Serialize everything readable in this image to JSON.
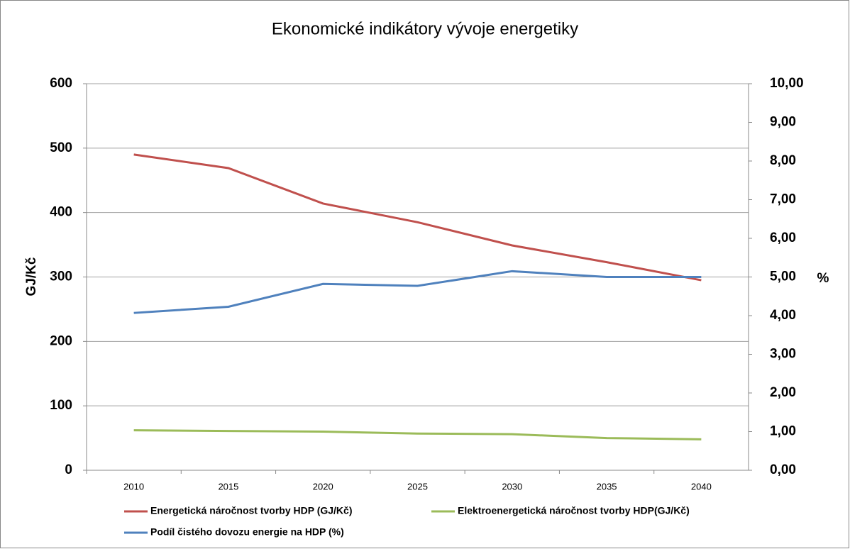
{
  "chart_data": {
    "type": "line",
    "title": "Ekonomické indikátory vývoje energetiky",
    "y_label": "GJ/Kč",
    "y2_label": "%",
    "categories": [
      "2010",
      "2015",
      "2020",
      "2025",
      "2030",
      "2035",
      "2040"
    ],
    "series": [
      {
        "name": "Energetická náročnost tvorby HDP (GJ/Kč)",
        "color": "#c0504d",
        "values": [
          490,
          469,
          414,
          385,
          349,
          323,
          295
        ]
      },
      {
        "name": "Elektroenergetická náročnost tvorby HDP(GJ/Kč)",
        "color": "#9bbb59",
        "values": [
          62,
          61,
          60,
          57,
          56,
          50,
          48
        ]
      },
      {
        "name": "Podíl čistého dovozu energie na HDP (%)",
        "color": "#4f81bd",
        "axis": "y2",
        "values": [
          4.07,
          4.23,
          4.82,
          4.77,
          5.15,
          5.0,
          5.0
        ]
      }
    ],
    "ylim": [
      0,
      600
    ],
    "yticks": [
      0,
      100,
      200,
      300,
      400,
      500,
      600
    ],
    "y2lim": [
      0,
      10
    ],
    "y2ticks": [
      {
        "value": 0,
        "label": "0,00"
      },
      {
        "value": 1,
        "label": "1,00"
      },
      {
        "value": 2,
        "label": "2,00"
      },
      {
        "value": 3,
        "label": "3,00"
      },
      {
        "value": 4,
        "label": "4,00"
      },
      {
        "value": 5,
        "label": "5,00"
      },
      {
        "value": 6,
        "label": "6,00"
      },
      {
        "value": 7,
        "label": "7,00"
      },
      {
        "value": 8,
        "label": "8,00"
      },
      {
        "value": 9,
        "label": "9,00"
      },
      {
        "value": 10,
        "label": "10,00"
      }
    ],
    "grid": true
  }
}
